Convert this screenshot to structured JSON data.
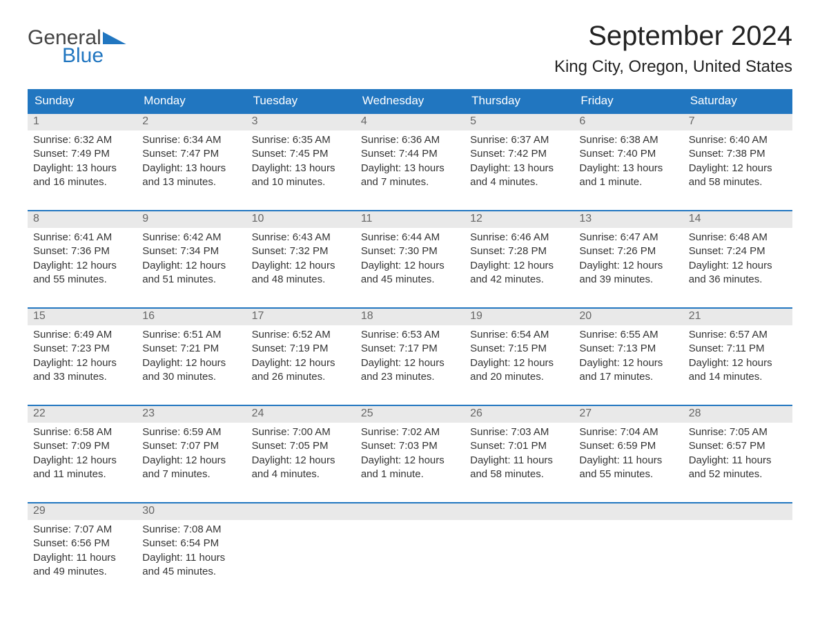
{
  "logo": {
    "general": "General",
    "blue": "Blue"
  },
  "title": "September 2024",
  "location": "King City, Oregon, United States",
  "dayHeaders": [
    "Sunday",
    "Monday",
    "Tuesday",
    "Wednesday",
    "Thursday",
    "Friday",
    "Saturday"
  ],
  "colors": {
    "headerBg": "#2176c0",
    "headerText": "#ffffff",
    "dayNumBg": "#e9e9e9",
    "dayNumText": "#666666",
    "bodyText": "#333333",
    "rowBorder": "#2176c0",
    "pageBg": "#ffffff"
  },
  "fonts": {
    "title_pt": 40,
    "location_pt": 24,
    "dayHeader_pt": 17,
    "dayNum_pt": 16,
    "body_pt": 15
  },
  "weeks": [
    [
      {
        "num": "1",
        "sunrise": "Sunrise: 6:32 AM",
        "sunset": "Sunset: 7:49 PM",
        "daylight": "Daylight: 13 hours and 16 minutes."
      },
      {
        "num": "2",
        "sunrise": "Sunrise: 6:34 AM",
        "sunset": "Sunset: 7:47 PM",
        "daylight": "Daylight: 13 hours and 13 minutes."
      },
      {
        "num": "3",
        "sunrise": "Sunrise: 6:35 AM",
        "sunset": "Sunset: 7:45 PM",
        "daylight": "Daylight: 13 hours and 10 minutes."
      },
      {
        "num": "4",
        "sunrise": "Sunrise: 6:36 AM",
        "sunset": "Sunset: 7:44 PM",
        "daylight": "Daylight: 13 hours and 7 minutes."
      },
      {
        "num": "5",
        "sunrise": "Sunrise: 6:37 AM",
        "sunset": "Sunset: 7:42 PM",
        "daylight": "Daylight: 13 hours and 4 minutes."
      },
      {
        "num": "6",
        "sunrise": "Sunrise: 6:38 AM",
        "sunset": "Sunset: 7:40 PM",
        "daylight": "Daylight: 13 hours and 1 minute."
      },
      {
        "num": "7",
        "sunrise": "Sunrise: 6:40 AM",
        "sunset": "Sunset: 7:38 PM",
        "daylight": "Daylight: 12 hours and 58 minutes."
      }
    ],
    [
      {
        "num": "8",
        "sunrise": "Sunrise: 6:41 AM",
        "sunset": "Sunset: 7:36 PM",
        "daylight": "Daylight: 12 hours and 55 minutes."
      },
      {
        "num": "9",
        "sunrise": "Sunrise: 6:42 AM",
        "sunset": "Sunset: 7:34 PM",
        "daylight": "Daylight: 12 hours and 51 minutes."
      },
      {
        "num": "10",
        "sunrise": "Sunrise: 6:43 AM",
        "sunset": "Sunset: 7:32 PM",
        "daylight": "Daylight: 12 hours and 48 minutes."
      },
      {
        "num": "11",
        "sunrise": "Sunrise: 6:44 AM",
        "sunset": "Sunset: 7:30 PM",
        "daylight": "Daylight: 12 hours and 45 minutes."
      },
      {
        "num": "12",
        "sunrise": "Sunrise: 6:46 AM",
        "sunset": "Sunset: 7:28 PM",
        "daylight": "Daylight: 12 hours and 42 minutes."
      },
      {
        "num": "13",
        "sunrise": "Sunrise: 6:47 AM",
        "sunset": "Sunset: 7:26 PM",
        "daylight": "Daylight: 12 hours and 39 minutes."
      },
      {
        "num": "14",
        "sunrise": "Sunrise: 6:48 AM",
        "sunset": "Sunset: 7:24 PM",
        "daylight": "Daylight: 12 hours and 36 minutes."
      }
    ],
    [
      {
        "num": "15",
        "sunrise": "Sunrise: 6:49 AM",
        "sunset": "Sunset: 7:23 PM",
        "daylight": "Daylight: 12 hours and 33 minutes."
      },
      {
        "num": "16",
        "sunrise": "Sunrise: 6:51 AM",
        "sunset": "Sunset: 7:21 PM",
        "daylight": "Daylight: 12 hours and 30 minutes."
      },
      {
        "num": "17",
        "sunrise": "Sunrise: 6:52 AM",
        "sunset": "Sunset: 7:19 PM",
        "daylight": "Daylight: 12 hours and 26 minutes."
      },
      {
        "num": "18",
        "sunrise": "Sunrise: 6:53 AM",
        "sunset": "Sunset: 7:17 PM",
        "daylight": "Daylight: 12 hours and 23 minutes."
      },
      {
        "num": "19",
        "sunrise": "Sunrise: 6:54 AM",
        "sunset": "Sunset: 7:15 PM",
        "daylight": "Daylight: 12 hours and 20 minutes."
      },
      {
        "num": "20",
        "sunrise": "Sunrise: 6:55 AM",
        "sunset": "Sunset: 7:13 PM",
        "daylight": "Daylight: 12 hours and 17 minutes."
      },
      {
        "num": "21",
        "sunrise": "Sunrise: 6:57 AM",
        "sunset": "Sunset: 7:11 PM",
        "daylight": "Daylight: 12 hours and 14 minutes."
      }
    ],
    [
      {
        "num": "22",
        "sunrise": "Sunrise: 6:58 AM",
        "sunset": "Sunset: 7:09 PM",
        "daylight": "Daylight: 12 hours and 11 minutes."
      },
      {
        "num": "23",
        "sunrise": "Sunrise: 6:59 AM",
        "sunset": "Sunset: 7:07 PM",
        "daylight": "Daylight: 12 hours and 7 minutes."
      },
      {
        "num": "24",
        "sunrise": "Sunrise: 7:00 AM",
        "sunset": "Sunset: 7:05 PM",
        "daylight": "Daylight: 12 hours and 4 minutes."
      },
      {
        "num": "25",
        "sunrise": "Sunrise: 7:02 AM",
        "sunset": "Sunset: 7:03 PM",
        "daylight": "Daylight: 12 hours and 1 minute."
      },
      {
        "num": "26",
        "sunrise": "Sunrise: 7:03 AM",
        "sunset": "Sunset: 7:01 PM",
        "daylight": "Daylight: 11 hours and 58 minutes."
      },
      {
        "num": "27",
        "sunrise": "Sunrise: 7:04 AM",
        "sunset": "Sunset: 6:59 PM",
        "daylight": "Daylight: 11 hours and 55 minutes."
      },
      {
        "num": "28",
        "sunrise": "Sunrise: 7:05 AM",
        "sunset": "Sunset: 6:57 PM",
        "daylight": "Daylight: 11 hours and 52 minutes."
      }
    ],
    [
      {
        "num": "29",
        "sunrise": "Sunrise: 7:07 AM",
        "sunset": "Sunset: 6:56 PM",
        "daylight": "Daylight: 11 hours and 49 minutes."
      },
      {
        "num": "30",
        "sunrise": "Sunrise: 7:08 AM",
        "sunset": "Sunset: 6:54 PM",
        "daylight": "Daylight: 11 hours and 45 minutes."
      },
      {
        "num": "",
        "sunrise": "",
        "sunset": "",
        "daylight": ""
      },
      {
        "num": "",
        "sunrise": "",
        "sunset": "",
        "daylight": ""
      },
      {
        "num": "",
        "sunrise": "",
        "sunset": "",
        "daylight": ""
      },
      {
        "num": "",
        "sunrise": "",
        "sunset": "",
        "daylight": ""
      },
      {
        "num": "",
        "sunrise": "",
        "sunset": "",
        "daylight": ""
      }
    ]
  ]
}
